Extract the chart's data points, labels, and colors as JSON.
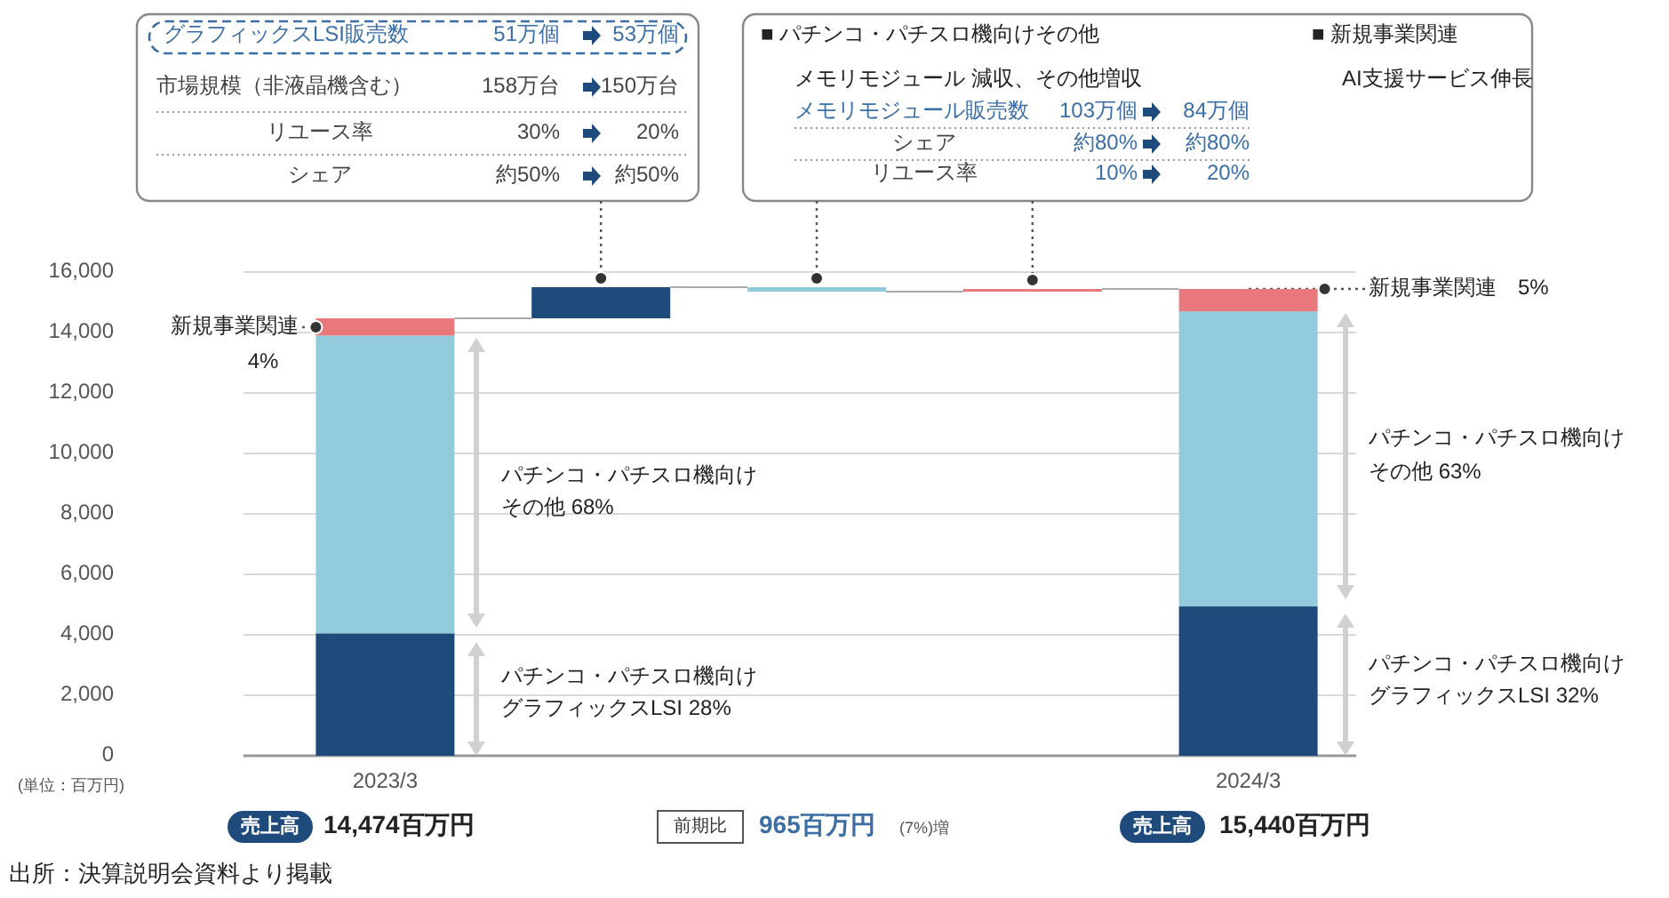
{
  "chart_data": {
    "type": "bar",
    "stacked": true,
    "categories": [
      "2023/3",
      null,
      null,
      null,
      "2024/3"
    ],
    "series": [
      {
        "color": "#1f4a7c",
        "values": [
          4050,
          1030,
          null,
          null,
          4940
        ],
        "base": [
          null,
          14470,
          null,
          null,
          null
        ]
      },
      {
        "color": "#92cbdc",
        "values": [
          9850,
          null,
          -150,
          null,
          9760
        ],
        "base": [
          null,
          null,
          15500,
          null,
          null
        ]
      },
      {
        "color": "#e8787c",
        "values": [
          570,
          null,
          null,
          90,
          740
        ],
        "base": [
          null,
          null,
          null,
          15350,
          null
        ]
      }
    ],
    "ylim": [
      0,
      16000
    ],
    "yticks": [
      {
        "value": 0,
        "label": "0"
      },
      {
        "value": 2000,
        "label": "2,000"
      },
      {
        "value": 4000,
        "label": "4,000"
      },
      {
        "value": 6000,
        "label": "6,000"
      },
      {
        "value": 8000,
        "label": "8,000"
      },
      {
        "value": 10000,
        "label": "10,000"
      },
      {
        "value": 12000,
        "label": "12,000"
      },
      {
        "value": 14000,
        "label": "14,000"
      },
      {
        "value": 16000,
        "label": "16,000"
      }
    ],
    "grid": "y",
    "annotations": [
      "グラフィックスLSI販売数",
      "51万個",
      "53万個",
      "市場規模（非液晶機含む）",
      "158万台",
      "150万台",
      "リユース率",
      "30%",
      "20%",
      "シェア",
      "約50%",
      "約50%",
      "■ パチンコ・パチスロ機向けその他",
      "メモリモジュール 減収、その他増収",
      "メモリモジュール販売数",
      "103万個",
      "84万個",
      "シェア",
      "約80%",
      "約80%",
      "リユース率",
      "10%",
      "20%",
      "■ 新規事業関連",
      "AI支援サービス伸長",
      "新規事業関連",
      "4%",
      "パチンコ・パチスロ機向け",
      "その他 68%",
      "パチンコ・パチスロ機向け",
      "グラフィックスLSI 28%",
      {
        "text": "新規事業関連　5%",
        "x": "2024/3",
        "y": 15440
      },
      "パチンコ・パチスロ機向け",
      "その他 63%",
      "パチンコ・パチスロ機向け",
      "グラフィックスLSI 32%",
      "(単位：百万円)",
      "売上高",
      "14,474百万円",
      "前期比",
      "965百万円",
      "(7%)増",
      "売上高",
      "15,440百万円",
      "出所：決算説明会資料より掲載"
    ]
  }
}
